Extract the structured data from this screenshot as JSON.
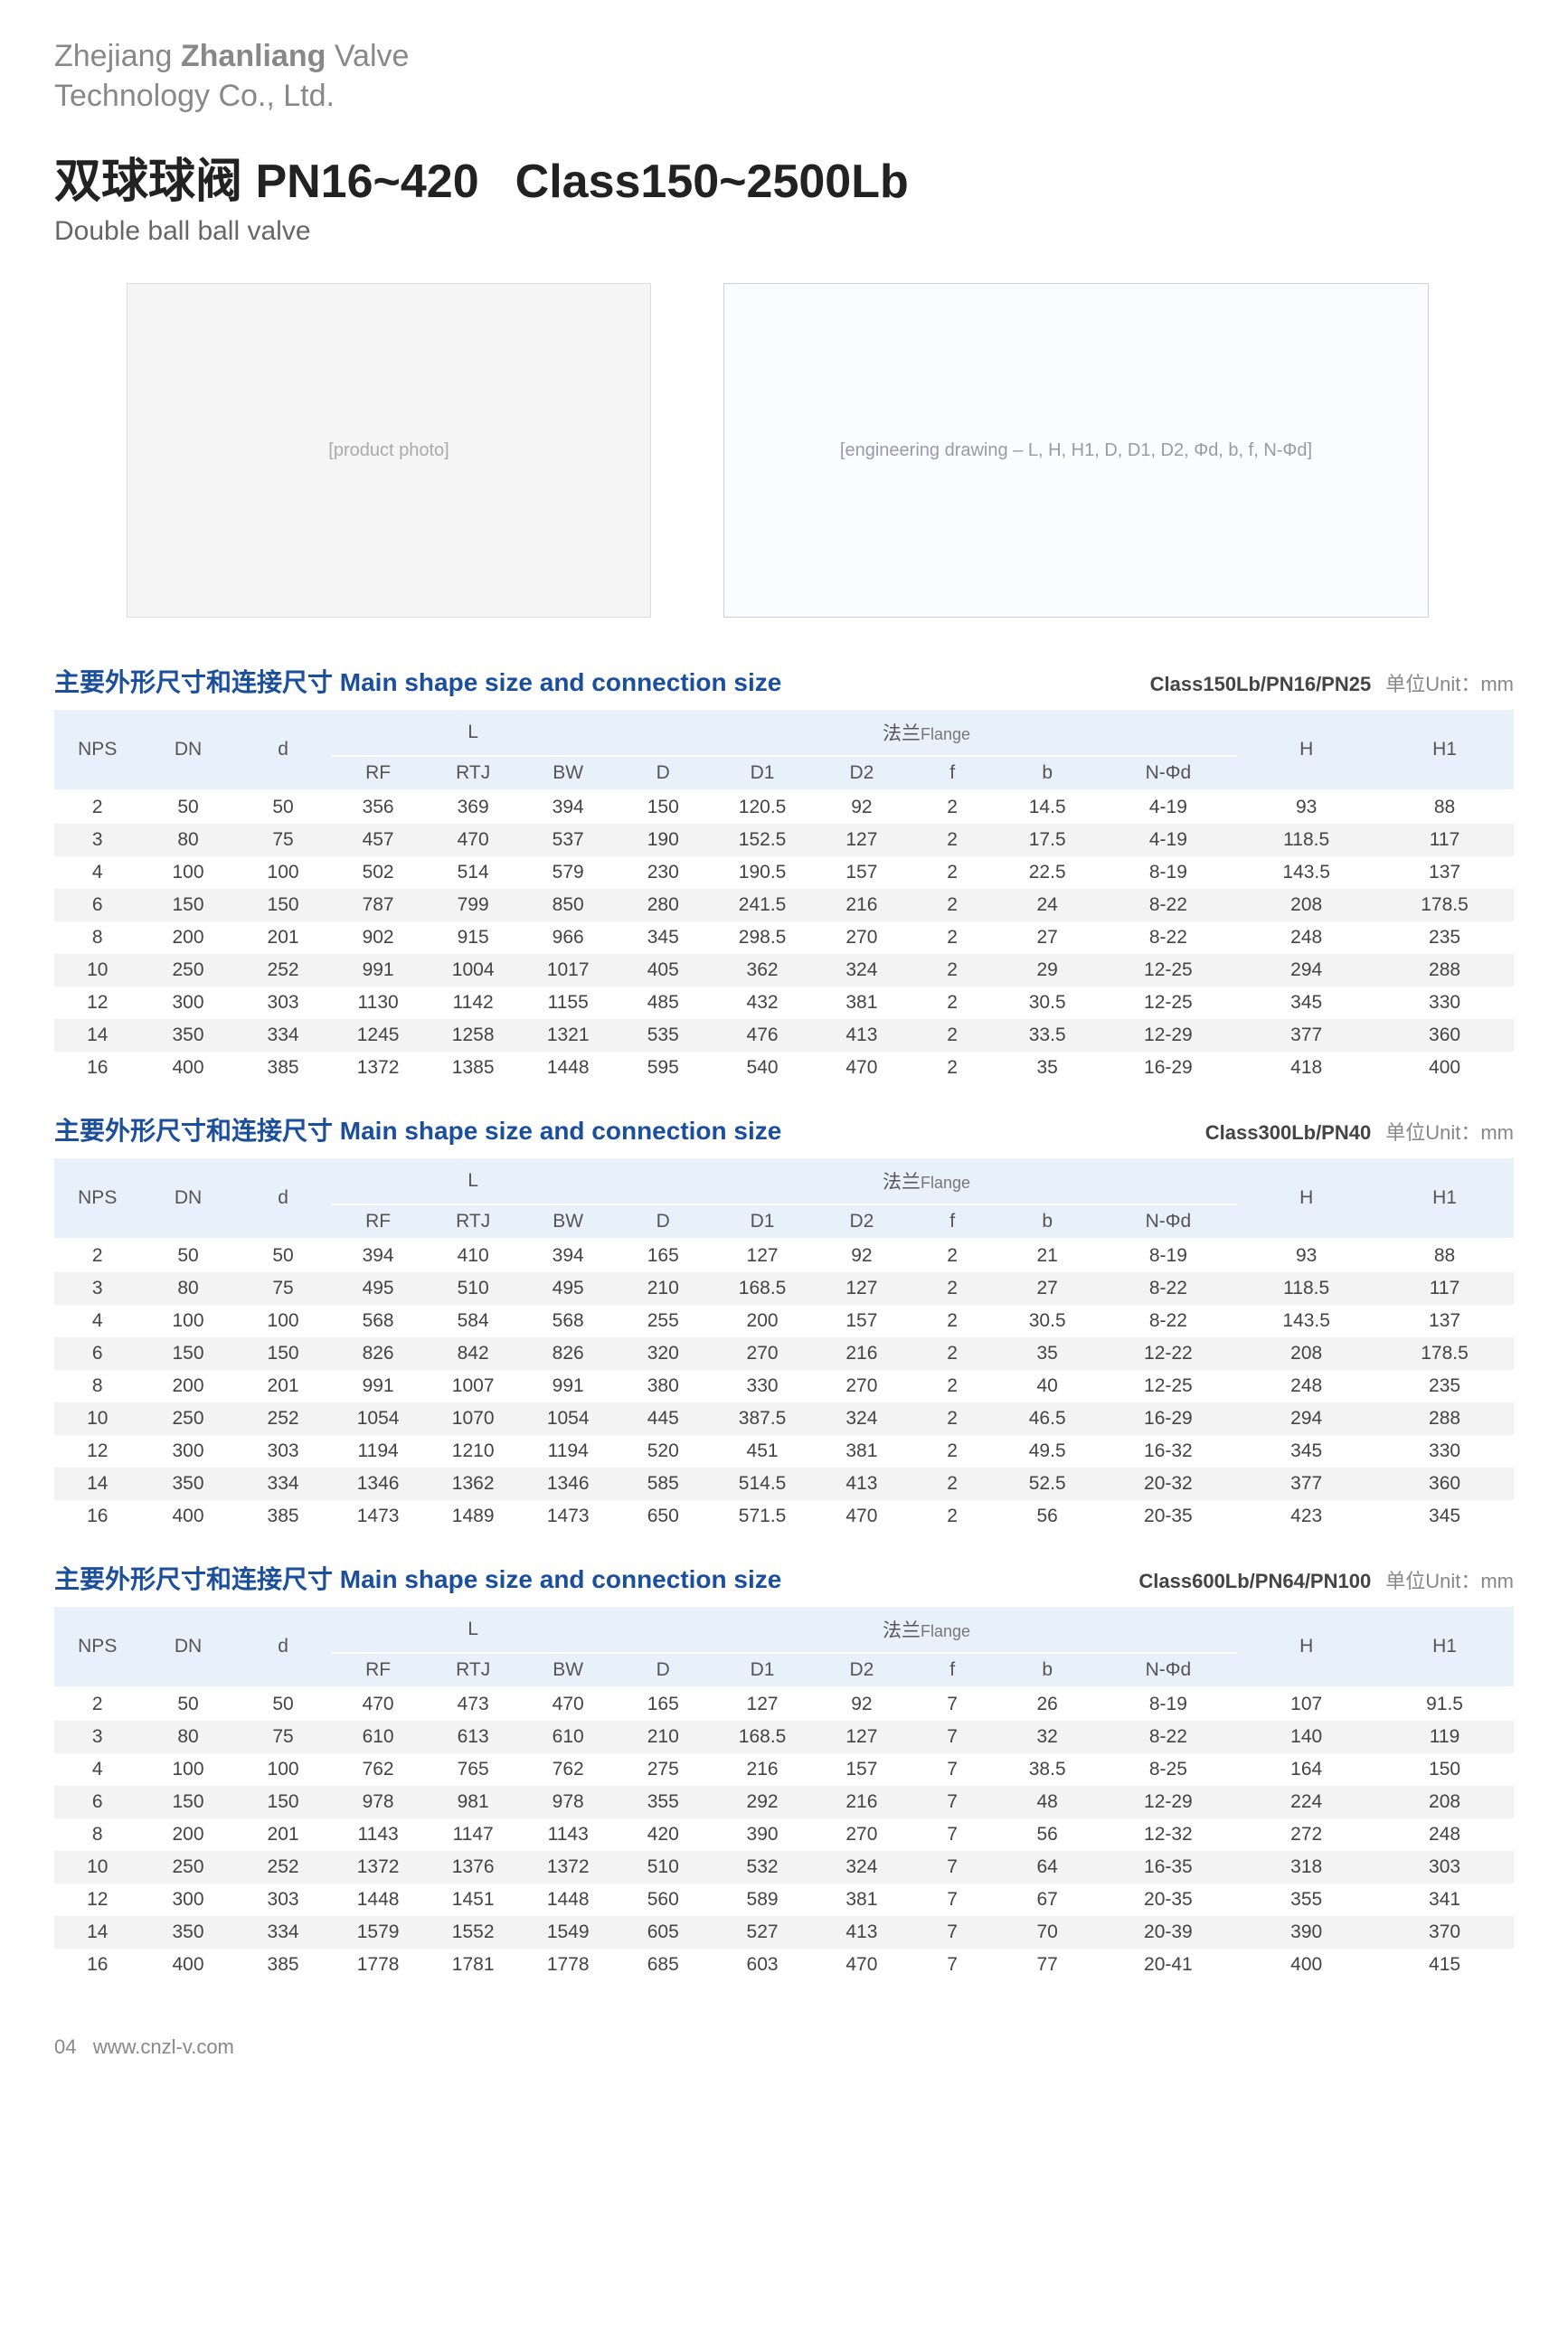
{
  "company": {
    "line1_pre": "Zhejiang ",
    "line1_bold": "Zhanliang",
    "line1_post": " Valve",
    "line2": "Technology Co., Ltd."
  },
  "title": {
    "cn": "双球球阀 PN16~420",
    "en_range": "Class150~2500Lb",
    "subtitle": "Double ball ball valve"
  },
  "figures": {
    "photo_label": "[product photo]",
    "diagram_label": "[engineering drawing – L, H, H1, D, D1, D2, Φd, b, f, N-Φd]"
  },
  "section_title": "主要外形尺寸和连接尺寸 Main shape size and connection size",
  "unit_label": "单位Unit：mm",
  "headers": {
    "NPS": "NPS",
    "DN": "DN",
    "d": "d",
    "L": "L",
    "flange": "法兰",
    "flange_en": "Flange",
    "RF": "RF",
    "RTJ": "RTJ",
    "BW": "BW",
    "D": "D",
    "D1": "D1",
    "D2": "D2",
    "f": "f",
    "b": "b",
    "Nphi": "N-Φd",
    "H": "H",
    "H1": "H1"
  },
  "tables": [
    {
      "class_label": "Class150Lb/PN16/PN25",
      "rows": [
        [
          "2",
          "50",
          "50",
          "356",
          "369",
          "394",
          "150",
          "120.5",
          "92",
          "2",
          "14.5",
          "4-19",
          "93",
          "88"
        ],
        [
          "3",
          "80",
          "75",
          "457",
          "470",
          "537",
          "190",
          "152.5",
          "127",
          "2",
          "17.5",
          "4-19",
          "118.5",
          "117"
        ],
        [
          "4",
          "100",
          "100",
          "502",
          "514",
          "579",
          "230",
          "190.5",
          "157",
          "2",
          "22.5",
          "8-19",
          "143.5",
          "137"
        ],
        [
          "6",
          "150",
          "150",
          "787",
          "799",
          "850",
          "280",
          "241.5",
          "216",
          "2",
          "24",
          "8-22",
          "208",
          "178.5"
        ],
        [
          "8",
          "200",
          "201",
          "902",
          "915",
          "966",
          "345",
          "298.5",
          "270",
          "2",
          "27",
          "8-22",
          "248",
          "235"
        ],
        [
          "10",
          "250",
          "252",
          "991",
          "1004",
          "1017",
          "405",
          "362",
          "324",
          "2",
          "29",
          "12-25",
          "294",
          "288"
        ],
        [
          "12",
          "300",
          "303",
          "1130",
          "1142",
          "1155",
          "485",
          "432",
          "381",
          "2",
          "30.5",
          "12-25",
          "345",
          "330"
        ],
        [
          "14",
          "350",
          "334",
          "1245",
          "1258",
          "1321",
          "535",
          "476",
          "413",
          "2",
          "33.5",
          "12-29",
          "377",
          "360"
        ],
        [
          "16",
          "400",
          "385",
          "1372",
          "1385",
          "1448",
          "595",
          "540",
          "470",
          "2",
          "35",
          "16-29",
          "418",
          "400"
        ]
      ]
    },
    {
      "class_label": "Class300Lb/PN40",
      "rows": [
        [
          "2",
          "50",
          "50",
          "394",
          "410",
          "394",
          "165",
          "127",
          "92",
          "2",
          "21",
          "8-19",
          "93",
          "88"
        ],
        [
          "3",
          "80",
          "75",
          "495",
          "510",
          "495",
          "210",
          "168.5",
          "127",
          "2",
          "27",
          "8-22",
          "118.5",
          "117"
        ],
        [
          "4",
          "100",
          "100",
          "568",
          "584",
          "568",
          "255",
          "200",
          "157",
          "2",
          "30.5",
          "8-22",
          "143.5",
          "137"
        ],
        [
          "6",
          "150",
          "150",
          "826",
          "842",
          "826",
          "320",
          "270",
          "216",
          "2",
          "35",
          "12-22",
          "208",
          "178.5"
        ],
        [
          "8",
          "200",
          "201",
          "991",
          "1007",
          "991",
          "380",
          "330",
          "270",
          "2",
          "40",
          "12-25",
          "248",
          "235"
        ],
        [
          "10",
          "250",
          "252",
          "1054",
          "1070",
          "1054",
          "445",
          "387.5",
          "324",
          "2",
          "46.5",
          "16-29",
          "294",
          "288"
        ],
        [
          "12",
          "300",
          "303",
          "1194",
          "1210",
          "1194",
          "520",
          "451",
          "381",
          "2",
          "49.5",
          "16-32",
          "345",
          "330"
        ],
        [
          "14",
          "350",
          "334",
          "1346",
          "1362",
          "1346",
          "585",
          "514.5",
          "413",
          "2",
          "52.5",
          "20-32",
          "377",
          "360"
        ],
        [
          "16",
          "400",
          "385",
          "1473",
          "1489",
          "1473",
          "650",
          "571.5",
          "470",
          "2",
          "56",
          "20-35",
          "423",
          "345"
        ]
      ]
    },
    {
      "class_label": "Class600Lb/PN64/PN100",
      "rows": [
        [
          "2",
          "50",
          "50",
          "470",
          "473",
          "470",
          "165",
          "127",
          "92",
          "7",
          "26",
          "8-19",
          "107",
          "91.5"
        ],
        [
          "3",
          "80",
          "75",
          "610",
          "613",
          "610",
          "210",
          "168.5",
          "127",
          "7",
          "32",
          "8-22",
          "140",
          "119"
        ],
        [
          "4",
          "100",
          "100",
          "762",
          "765",
          "762",
          "275",
          "216",
          "157",
          "7",
          "38.5",
          "8-25",
          "164",
          "150"
        ],
        [
          "6",
          "150",
          "150",
          "978",
          "981",
          "978",
          "355",
          "292",
          "216",
          "7",
          "48",
          "12-29",
          "224",
          "208"
        ],
        [
          "8",
          "200",
          "201",
          "1143",
          "1147",
          "1143",
          "420",
          "390",
          "270",
          "7",
          "56",
          "12-32",
          "272",
          "248"
        ],
        [
          "10",
          "250",
          "252",
          "1372",
          "1376",
          "1372",
          "510",
          "532",
          "324",
          "7",
          "64",
          "16-35",
          "318",
          "303"
        ],
        [
          "12",
          "300",
          "303",
          "1448",
          "1451",
          "1448",
          "560",
          "589",
          "381",
          "7",
          "67",
          "20-35",
          "355",
          "341"
        ],
        [
          "14",
          "350",
          "334",
          "1579",
          "1552",
          "1549",
          "605",
          "527",
          "413",
          "7",
          "70",
          "20-39",
          "390",
          "370"
        ],
        [
          "16",
          "400",
          "385",
          "1778",
          "1781",
          "1778",
          "685",
          "603",
          "470",
          "7",
          "77",
          "20-41",
          "400",
          "415"
        ]
      ]
    }
  ],
  "footer": {
    "page": "04",
    "url": "www.cnzl-v.com"
  }
}
